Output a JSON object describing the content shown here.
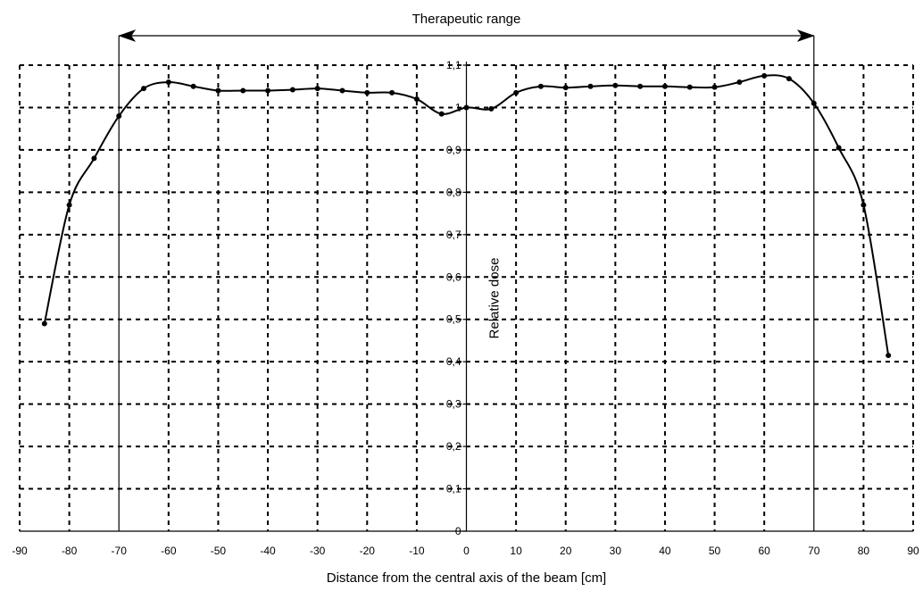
{
  "chart_data": {
    "type": "line",
    "title": "",
    "xlabel": "Distance from the central axis of the beam [cm]",
    "ylabel": "Relative dose",
    "xlim": [
      -90,
      90
    ],
    "ylim": [
      0,
      1.1
    ],
    "x_ticks": [
      -90,
      -80,
      -70,
      -60,
      -50,
      -40,
      -30,
      -20,
      -10,
      0,
      10,
      20,
      30,
      40,
      50,
      60,
      70,
      80,
      90
    ],
    "x_tick_labels": [
      "-90",
      "-80",
      "-70",
      "-60",
      "-50",
      "-40",
      "-30",
      "-20",
      "-10",
      "0",
      "10",
      "20",
      "30",
      "40",
      "50",
      "60",
      "70",
      "80",
      "90"
    ],
    "y_ticks": [
      0,
      0.1,
      0.2,
      0.3,
      0.4,
      0.5,
      0.6,
      0.7,
      0.8,
      0.9,
      1.0,
      1.1
    ],
    "y_tick_labels": [
      "0",
      "0,1",
      "0,2",
      "0,3",
      "0,4",
      "0,5",
      "0,6",
      "0,7",
      "0,8",
      "0,9",
      "1",
      "1,1"
    ],
    "grid": true,
    "legend": "none",
    "series": [
      {
        "x": [
          -85,
          -80,
          -75,
          -70,
          -65,
          -60,
          -55,
          -50,
          -45,
          -40,
          -35,
          -30,
          -25,
          -20,
          -15,
          -10,
          -5,
          0,
          5,
          10,
          15,
          20,
          25,
          30,
          35,
          40,
          45,
          50,
          55,
          60,
          65,
          70,
          75,
          80,
          85
        ],
        "y": [
          0.49,
          0.77,
          0.88,
          0.98,
          1.045,
          1.06,
          1.05,
          1.04,
          1.04,
          1.04,
          1.042,
          1.045,
          1.04,
          1.035,
          1.035,
          1.02,
          0.985,
          1.0,
          0.997,
          1.035,
          1.05,
          1.047,
          1.05,
          1.052,
          1.05,
          1.05,
          1.048,
          1.048,
          1.06,
          1.075,
          1.068,
          1.01,
          0.905,
          0.77,
          0.415
        ]
      }
    ],
    "annotations": [
      {
        "type": "double-arrow",
        "label": "Therapeutic range",
        "x_start": -70,
        "x_end": 70
      }
    ]
  }
}
